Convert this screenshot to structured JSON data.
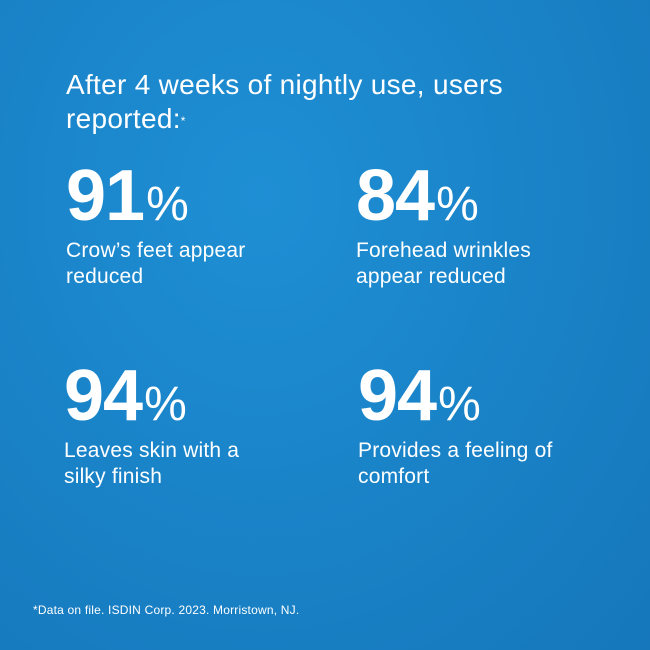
{
  "headline": {
    "text": "After 4 weeks of nightly use, users reported:",
    "marker": "*"
  },
  "stats": [
    {
      "value": "91",
      "unit": "%",
      "desc_line1": "Crow’s feet appear",
      "desc_line2": "reduced"
    },
    {
      "value": "84",
      "unit": "%",
      "desc_line1": "Forehead wrinkles",
      "desc_line2": "appear reduced"
    },
    {
      "value": "94",
      "unit": "%",
      "desc_line1": "Leaves skin with a",
      "desc_line2": "silky finish"
    },
    {
      "value": "94",
      "unit": "%",
      "desc_line1": "Provides a feeling of",
      "desc_line2": "comfort"
    }
  ],
  "footnote": "*Data on file. ISDIN Corp. 2023. Morristown, NJ.",
  "colors": {
    "background": "#1a84c9",
    "text": "#ffffff"
  }
}
